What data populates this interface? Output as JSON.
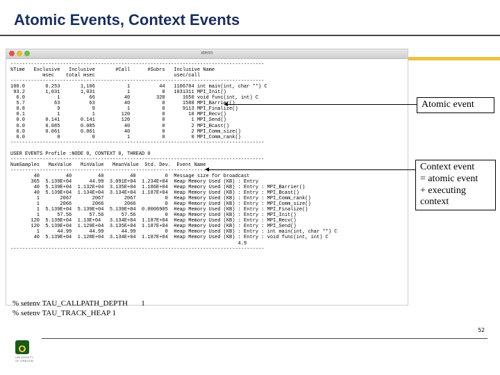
{
  "title": "Atomic Events, Context Events",
  "traffic_colors": [
    "#e0544a",
    "#e8b93c",
    "#6fbd4a"
  ],
  "window_title": "xterm",
  "term_header1": "%Time   Exclusive   Inclusive       #Call      #Subrs   Inclusive Name",
  "term_header2": "           msec    total msec                           usec/call",
  "dashes": "---------------------------------------------------------------------------------------",
  "rows_top": [
    "100.0       0.253       1,106           1          44   1106704 int main(int, char **) C",
    " 93.2       1,031       1,031           1           0   1031311 MPI_Init()",
    "  6.0           1          66          40         320      1650 void func(int, int) C",
    "  5.7          63          63          40           0      1588 MPI_Barrier()",
    "  0.8           9           9           1           0      9113 MPI_Finalize()",
    "  0.1           1           1         120           0        10 MPI_Recv()",
    "  0.0       0.141       0.141         120           0         1 MPI_Send()",
    "  0.0       0.085       0.085          40           0         2 MPI_Bcast()",
    "  0.0       0.061       0.061          40           0         2 MPI_Comm_size()",
    "  0.0           0           0           1           0         0 MPI_Comm_rank()"
  ],
  "user_events_line": "USER EVENTS Profile :NODE 0, CONTEXT 0, THREAD 0",
  "ue_header": "NumSamples   MaxValue   MinValue   MeanValue  Std. Dev.  Event Name",
  "rows_bottom": [
    "        40         40         40         40          0  Message size for broadcast",
    "       365  5.139E+04      44.99  3.091E+04  1.234E+04  Heap Memory Used (KB) : Entry",
    "        40  5.139E+04  1.132E+04  3.135E+04  1.186E+04  Heap Memory Used (KB) : Entry : MPI_Barrier()",
    "        40  5.139E+04  1.134E+04  3.134E+04  1.187E+04  Heap Memory Used (KB) : Entry : MPI_Bcast()",
    "         1       2067       2067       2067          0  Heap Memory Used (KB) : Entry : MPI_Comm_rank()",
    "         1       2066       2066       2066          0  Heap Memory Used (KB) : Entry : MPI_Comm_size()",
    "         1  5.139E+04  5.139E+04  5.139E+04  0.0006905  Heap Memory Used (KB) : Entry : MPI_Finalize()",
    "         1      57.56      57.56      57.56          0  Heap Memory Used (KB) : Entry : MPI_Init()",
    "       120  5.139E+04  1.13E+04   3.134E+04  1.187E+04  Heap Memory Used (KB) : Entry : MPI_Recv()",
    "       120  5.139E+04  1.129E+04  3.135E+04  1.187E+04  Heap Memory Used (KB) : Entry : MPI_Send()",
    "         1      44.99      44.99      44.99          0  Heap Memory Used (KB) : Entry : int main(int, char **) C",
    "        40  5.139E+04  1.128E+04  3.134E+04  1.187E+04  Heap Memory Used (KB) : Entry : void func(int, int) C"
  ],
  "bottom_extra": "                                                                              4.9",
  "callout_atomic": "Atomic event",
  "callout_context_l1": "Context event",
  "callout_context_l2": "= atomic event",
  "callout_context_l3": "+ executing",
  "callout_context_l4": "context",
  "cmd1": "% setenv TAU_CALLPATH_DEPTH",
  "cmd1_val": "1",
  "cmd2": "% setenv TAU_TRACK_HEAP  1",
  "logo_letter": "O",
  "logo_text": "UNIVERSITY OF OREGON",
  "page_number": "52"
}
